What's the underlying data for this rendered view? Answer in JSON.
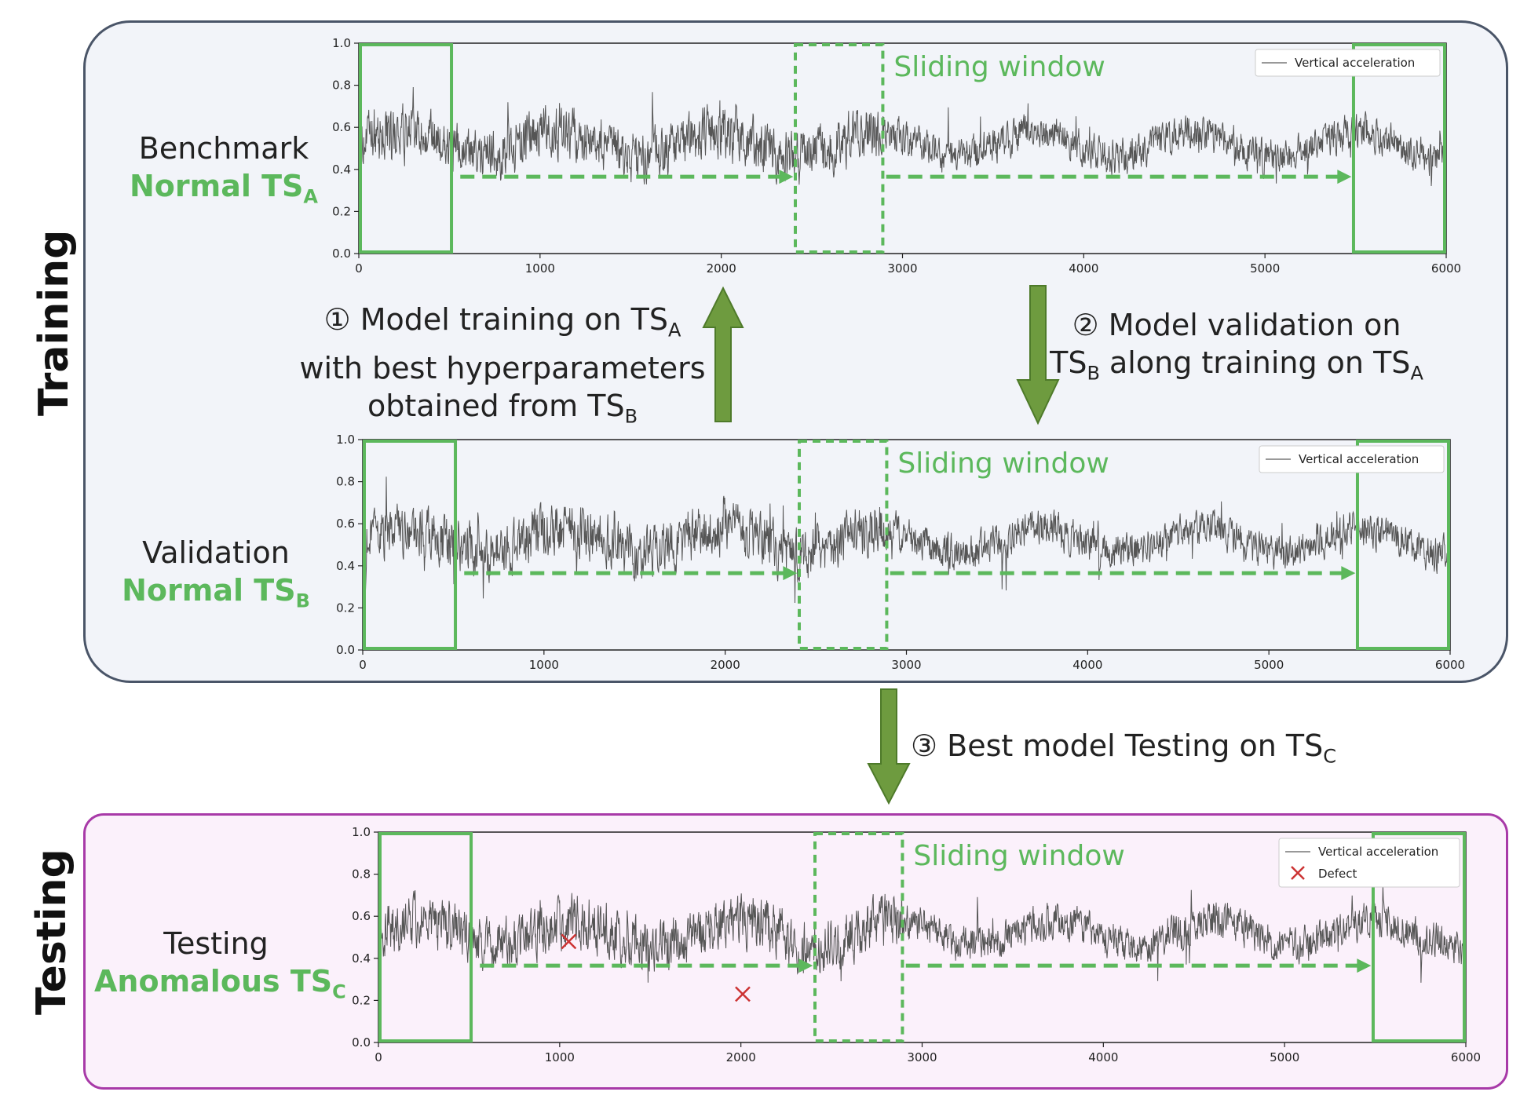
{
  "sections": {
    "training": "Training",
    "testing": "Testing"
  },
  "rows": [
    {
      "id": "A",
      "title": "Benchmark",
      "highlight": "Normal TS",
      "sub": "A"
    },
    {
      "id": "B",
      "title": "Validation",
      "highlight": "Normal TS",
      "sub": "B"
    },
    {
      "id": "C",
      "title": "Testing",
      "highlight": "Anomalous TS",
      "sub": "C"
    }
  ],
  "steps": {
    "s1": {
      "num": "①",
      "l1": "Model training on TS",
      "l1sub": "A",
      "l2": "with best hyperparameters",
      "l3": "obtained from TS",
      "l3sub": "B"
    },
    "s2": {
      "num": "②",
      "l1": "Model validation on",
      "l2a": "TS",
      "l2asub": "B",
      "l2b": " along training on TS",
      "l2bsub": "A"
    },
    "s3": {
      "num": "③",
      "l1": "Best model Testing on TS",
      "l1sub": "C"
    }
  },
  "window_label": "Sliding window",
  "colors": {
    "accent_green": "#5cb85c",
    "arrow_green": "#6e9b3f",
    "signal": "#555555",
    "defect": "#cc3333"
  },
  "chart_data": [
    {
      "type": "line",
      "id": "A",
      "series": [
        {
          "name": "Vertical acceleration"
        }
      ],
      "xlim": [
        0,
        6000
      ],
      "ylim": [
        0.0,
        1.0
      ],
      "xticks": [
        "0",
        "1000",
        "2000",
        "3000",
        "4000",
        "5000",
        "6000"
      ],
      "yticks": [
        "0.0",
        "0.2",
        "0.4",
        "0.6",
        "0.8",
        "1.0"
      ],
      "windows": [
        [
          0,
          520
        ],
        [
          2400,
          2900
        ],
        [
          5480,
          6000
        ]
      ]
    },
    {
      "type": "line",
      "id": "B",
      "series": [
        {
          "name": "Vertical acceleration"
        }
      ],
      "xlim": [
        0,
        6000
      ],
      "ylim": [
        0.0,
        1.0
      ],
      "xticks": [
        "0",
        "1000",
        "2000",
        "3000",
        "4000",
        "5000",
        "6000"
      ],
      "yticks": [
        "0.0",
        "0.2",
        "0.4",
        "0.6",
        "0.8",
        "1.0"
      ],
      "windows": [
        [
          0,
          520
        ],
        [
          2400,
          2900
        ],
        [
          5480,
          6000
        ]
      ]
    },
    {
      "type": "line",
      "id": "C",
      "series": [
        {
          "name": "Vertical acceleration"
        },
        {
          "name": "Defect",
          "points": [
            [
              1050,
              0.48
            ],
            [
              2010,
              0.23
            ]
          ]
        }
      ],
      "xlim": [
        0,
        6000
      ],
      "ylim": [
        0.0,
        1.0
      ],
      "xticks": [
        "0",
        "1000",
        "2000",
        "3000",
        "4000",
        "5000",
        "6000"
      ],
      "yticks": [
        "0.0",
        "0.2",
        "0.4",
        "0.6",
        "0.8",
        "1.0"
      ],
      "windows": [
        [
          0,
          520
        ],
        [
          2400,
          2900
        ],
        [
          5480,
          6000
        ]
      ]
    }
  ]
}
